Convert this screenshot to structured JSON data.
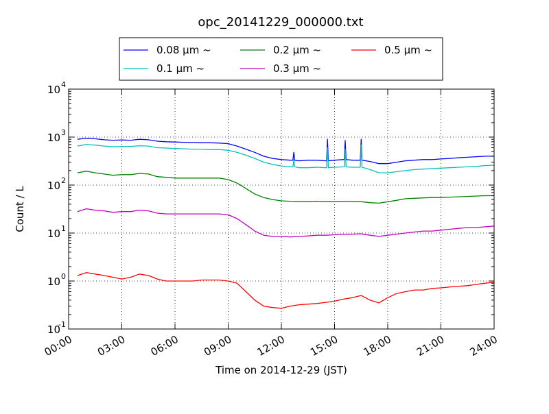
{
  "chart_data": {
    "type": "line",
    "title": "opc_20141229_000000.txt",
    "xlabel": "Time on 2014-12-29 (JST)",
    "ylabel": "Count / L",
    "yscale": "log",
    "xlim": [
      0,
      24
    ],
    "ylim": [
      0.1,
      10000
    ],
    "grid": true,
    "legend_position": "top",
    "x_tick_labels": [
      "00:00",
      "03:00",
      "06:00",
      "09:00",
      "12:00",
      "15:00",
      "18:00",
      "21:00",
      "24:00"
    ],
    "y_tick_labels": [
      {
        "base": "10",
        "exp": "-1"
      },
      {
        "base": "10",
        "exp": "0"
      },
      {
        "base": "10",
        "exp": "1"
      },
      {
        "base": "10",
        "exp": "2"
      },
      {
        "base": "10",
        "exp": "3"
      },
      {
        "base": "10",
        "exp": "4"
      }
    ],
    "x_hours": [
      0.5,
      1,
      1.5,
      2,
      2.5,
      3,
      3.5,
      4,
      4.5,
      5,
      5.5,
      6,
      6.5,
      7,
      7.5,
      8,
      8.5,
      9,
      9.5,
      10,
      10.5,
      11,
      11.5,
      12,
      12.5,
      13,
      13.5,
      14,
      14.5,
      15,
      15.5,
      16,
      16.5,
      17,
      17.5,
      18,
      18.5,
      19,
      19.5,
      20,
      20.5,
      21,
      21.5,
      22,
      22.5,
      23,
      23.5,
      24
    ],
    "series": [
      {
        "name": "0.08 μm ~",
        "color": "#0000ff",
        "values": [
          900,
          950,
          920,
          880,
          860,
          870,
          860,
          900,
          880,
          820,
          800,
          790,
          780,
          770,
          760,
          760,
          750,
          730,
          650,
          560,
          480,
          400,
          360,
          340,
          330,
          320,
          330,
          330,
          320,
          330,
          340,
          330,
          330,
          310,
          280,
          280,
          300,
          320,
          330,
          340,
          340,
          350,
          360,
          370,
          380,
          390,
          400,
          400
        ],
        "spikes": [
          {
            "x": 12.7,
            "y": 480
          },
          {
            "x": 14.6,
            "y": 900
          },
          {
            "x": 15.6,
            "y": 850
          },
          {
            "x": 16.5,
            "y": 900
          }
        ]
      },
      {
        "name": "0.1 μm ~",
        "color": "#00bfbf",
        "values": [
          650,
          700,
          680,
          650,
          630,
          640,
          640,
          660,
          650,
          600,
          590,
          580,
          570,
          560,
          560,
          550,
          550,
          530,
          480,
          420,
          360,
          300,
          270,
          250,
          240,
          230,
          230,
          235,
          230,
          235,
          240,
          235,
          230,
          210,
          180,
          180,
          190,
          200,
          210,
          215,
          220,
          225,
          230,
          235,
          240,
          245,
          255,
          260
        ],
        "spikes": [
          {
            "x": 12.7,
            "y": 330
          },
          {
            "x": 14.6,
            "y": 600
          },
          {
            "x": 15.6,
            "y": 560
          },
          {
            "x": 16.5,
            "y": 680
          }
        ]
      },
      {
        "name": "0.2 μm ~",
        "color": "#008000",
        "values": [
          180,
          195,
          180,
          170,
          160,
          165,
          165,
          175,
          170,
          150,
          145,
          140,
          140,
          140,
          140,
          140,
          140,
          130,
          110,
          85,
          65,
          55,
          50,
          47,
          46,
          45,
          45,
          46,
          45,
          45,
          46,
          45,
          45,
          43,
          42,
          45,
          48,
          52,
          53,
          54,
          55,
          55,
          56,
          57,
          58,
          59,
          60,
          60
        ]
      },
      {
        "name": "0.3 μm ~",
        "color": "#bf00bf",
        "values": [
          28,
          32,
          30,
          29,
          27,
          28,
          28,
          30,
          29,
          26,
          25,
          25,
          25,
          25,
          25,
          25,
          25,
          24,
          20,
          15,
          11,
          9,
          8.5,
          8.5,
          8.3,
          8.5,
          8.7,
          9,
          9,
          9.2,
          9.4,
          9.5,
          9.6,
          9,
          8.5,
          9,
          9.5,
          10,
          10.5,
          11,
          11,
          11.5,
          12,
          12.5,
          13,
          13,
          13.5,
          14
        ]
      },
      {
        "name": "0.5 μm ~",
        "color": "#ff0000",
        "values": [
          1.3,
          1.5,
          1.4,
          1.3,
          1.2,
          1.1,
          1.2,
          1.4,
          1.3,
          1.1,
          1.0,
          1.0,
          1.0,
          1.0,
          1.05,
          1.05,
          1.05,
          1.0,
          0.9,
          0.6,
          0.4,
          0.3,
          0.28,
          0.27,
          0.3,
          0.32,
          0.33,
          0.34,
          0.36,
          0.38,
          0.42,
          0.45,
          0.5,
          0.4,
          0.35,
          0.45,
          0.55,
          0.6,
          0.65,
          0.65,
          0.7,
          0.72,
          0.75,
          0.78,
          0.8,
          0.85,
          0.9,
          0.95
        ]
      }
    ]
  }
}
